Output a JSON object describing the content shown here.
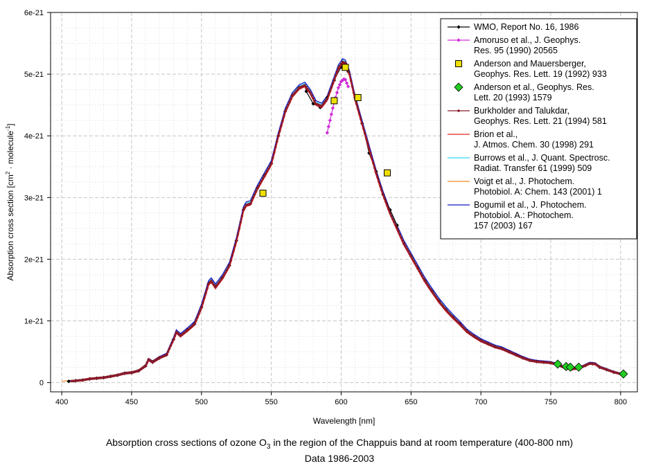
{
  "chart_data": {
    "type": "line",
    "xlabel": "Wavelength [nm]",
    "ylabel_parts": [
      "Absorption cross section [cm",
      "2",
      " · molecule",
      "-1",
      "]"
    ],
    "xlim": [
      392,
      812
    ],
    "ylim": [
      -1.5e-22,
      6e-21
    ],
    "x_ticks": [
      400,
      450,
      500,
      550,
      600,
      650,
      700,
      750,
      800
    ],
    "x_tick_labels": [
      "400",
      "450",
      "500",
      "550",
      "600",
      "650",
      "700",
      "750",
      "800"
    ],
    "y_ticks": [
      0,
      1e-21,
      2e-21,
      3e-21,
      4e-21,
      5e-21,
      6e-21
    ],
    "y_tick_labels": [
      "0",
      "1e-21",
      "2e-21",
      "3e-21",
      "4e-21",
      "5e-21",
      "6e-21"
    ],
    "grid": true,
    "legend_position": "top-right",
    "caption_line1_parts": [
      "Absorption cross sections of ozone O",
      "3",
      " in the region of the Chappuis band at room temperature (400-800 nm)"
    ],
    "caption_line2": "Data 1986-2003",
    "base_spectrum": {
      "x": [
        400,
        405,
        410,
        415,
        420,
        425,
        430,
        435,
        440,
        445,
        450,
        455,
        460,
        462,
        465,
        470,
        475,
        480,
        482,
        485,
        490,
        495,
        500,
        505,
        507,
        510,
        515,
        520,
        525,
        530,
        532,
        535,
        540,
        545,
        550,
        555,
        560,
        565,
        570,
        574,
        578,
        582,
        586,
        590,
        594,
        598,
        601,
        603,
        606,
        610,
        615,
        620,
        625,
        630,
        635,
        640,
        645,
        650,
        655,
        660,
        665,
        670,
        675,
        680,
        685,
        690,
        695,
        700,
        705,
        710,
        715,
        720,
        725,
        730,
        735,
        740,
        745,
        750,
        755,
        760,
        765,
        770,
        775,
        778,
        782,
        785,
        790,
        795,
        800
      ],
      "y": [
        0.01,
        0.02,
        0.03,
        0.04,
        0.06,
        0.07,
        0.08,
        0.1,
        0.12,
        0.15,
        0.16,
        0.19,
        0.27,
        0.37,
        0.33,
        0.4,
        0.45,
        0.7,
        0.82,
        0.76,
        0.85,
        0.95,
        1.22,
        1.6,
        1.65,
        1.55,
        1.7,
        1.9,
        2.3,
        2.8,
        2.88,
        2.9,
        3.15,
        3.35,
        3.55,
        4.0,
        4.4,
        4.65,
        4.78,
        4.82,
        4.7,
        4.52,
        4.48,
        4.6,
        4.85,
        5.1,
        5.2,
        5.18,
        5.0,
        4.6,
        4.2,
        3.8,
        3.4,
        3.05,
        2.75,
        2.5,
        2.25,
        2.05,
        1.85,
        1.65,
        1.48,
        1.32,
        1.18,
        1.06,
        0.95,
        0.83,
        0.75,
        0.68,
        0.63,
        0.58,
        0.55,
        0.5,
        0.45,
        0.4,
        0.36,
        0.34,
        0.33,
        0.32,
        0.29,
        0.24,
        0.22,
        0.23,
        0.28,
        0.31,
        0.3,
        0.25,
        0.21,
        0.17,
        0.14
      ]
    },
    "series": [
      {
        "name": "wmo",
        "color": "#000000",
        "marker": "diamond",
        "markerEvery": 1,
        "x_from": 405,
        "x_to": 800,
        "overrides": [
          [
            575,
            4.72
          ],
          [
            580,
            4.52
          ],
          [
            585,
            4.46
          ],
          [
            590,
            4.62
          ],
          [
            595,
            4.9
          ],
          [
            599,
            5.08
          ],
          [
            601,
            5.15
          ],
          [
            603,
            5.12
          ],
          [
            606,
            5.0
          ],
          [
            610,
            4.62
          ],
          [
            615,
            4.2
          ],
          [
            620,
            3.72
          ],
          [
            625,
            3.42
          ],
          [
            630,
            3.05
          ],
          [
            635,
            2.8
          ],
          [
            640,
            2.55
          ]
        ]
      },
      {
        "name": "amoruso",
        "color": "#d02ad8",
        "marker": "diamond",
        "x_from": 590,
        "x_to": 605,
        "overrides": [
          [
            590,
            4.05
          ],
          [
            592,
            4.25
          ],
          [
            594,
            4.45
          ],
          [
            596,
            4.62
          ],
          [
            598,
            4.78
          ],
          [
            600,
            4.88
          ],
          [
            602,
            4.92
          ],
          [
            603,
            4.91
          ],
          [
            605,
            4.8
          ]
        ]
      },
      {
        "name": "anderson_mauer",
        "color": "#f0e000",
        "marker": "square",
        "line": false,
        "points": [
          [
            544,
            3.07
          ],
          [
            595,
            4.57
          ],
          [
            603,
            5.11
          ],
          [
            612,
            4.62
          ],
          [
            633,
            3.4
          ]
        ]
      },
      {
        "name": "anderson_geo",
        "color": "#22cc22",
        "marker": "bigdiamond",
        "line": false,
        "points": [
          [
            755,
            0.3
          ],
          [
            761,
            0.26
          ],
          [
            764,
            0.25
          ],
          [
            770,
            0.25
          ],
          [
            802,
            0.14
          ]
        ]
      },
      {
        "name": "burkholder",
        "color": "#8b1a2a",
        "marker": "dot",
        "x_from": 407,
        "x_to": 800,
        "offset": 0.0
      },
      {
        "name": "brion",
        "color": "#e02020",
        "x_from": 407,
        "x_to": 800,
        "offset": -0.02
      },
      {
        "name": "burrows",
        "color": "#33d6f0",
        "x_from": 407,
        "x_to": 800,
        "offset": 0.03
      },
      {
        "name": "voigt",
        "color": "#f08a20",
        "x_from": 400,
        "x_to": 470,
        "offset": 0.06
      },
      {
        "name": "bogumil",
        "color": "#1414c8",
        "x_from": 405,
        "x_to": 800,
        "offset": 0.05
      }
    ],
    "legend": [
      {
        "series": "wmo",
        "lines": [
          " WMO, Report No. 16, 1986"
        ]
      },
      {
        "series": "amoruso",
        "lines": [
          "Amoruso et al., J. Geophys.",
          "Res. 95 (1990) 20565"
        ]
      },
      {
        "series": "anderson_mauer",
        "lines": [
          "Anderson and Mauersberger,",
          "Geophys. Res. Lett. 19 (1992) 933"
        ]
      },
      {
        "series": "anderson_geo",
        "lines": [
          "Anderson et al., Geophys. Res.",
          "Lett. 20 (1993) 1579"
        ]
      },
      {
        "series": "burkholder",
        "lines": [
          "Burkholder and Talukdar,",
          "Geophys. Res. Lett. 21 (1994) 581"
        ]
      },
      {
        "series": "brion",
        "lines": [
          "Brion et al.,",
          "J. Atmos. Chem. 30 (1998) 291"
        ]
      },
      {
        "series": "burrows",
        "lines": [
          "Burrows et al., J. Quant. Spectrosc.",
          "Radiat. Transfer 61 (1999) 509"
        ]
      },
      {
        "series": "voigt",
        "lines": [
          "Voigt et al., J. Photochem.",
          "Photobiol. A: Chem. 143 (2001) 1"
        ]
      },
      {
        "series": "bogumil",
        "lines": [
          "Bogumil et al., J. Photochem.",
          "Photobiol. A.: Photochem.",
          "157 (2003) 167"
        ]
      }
    ]
  }
}
